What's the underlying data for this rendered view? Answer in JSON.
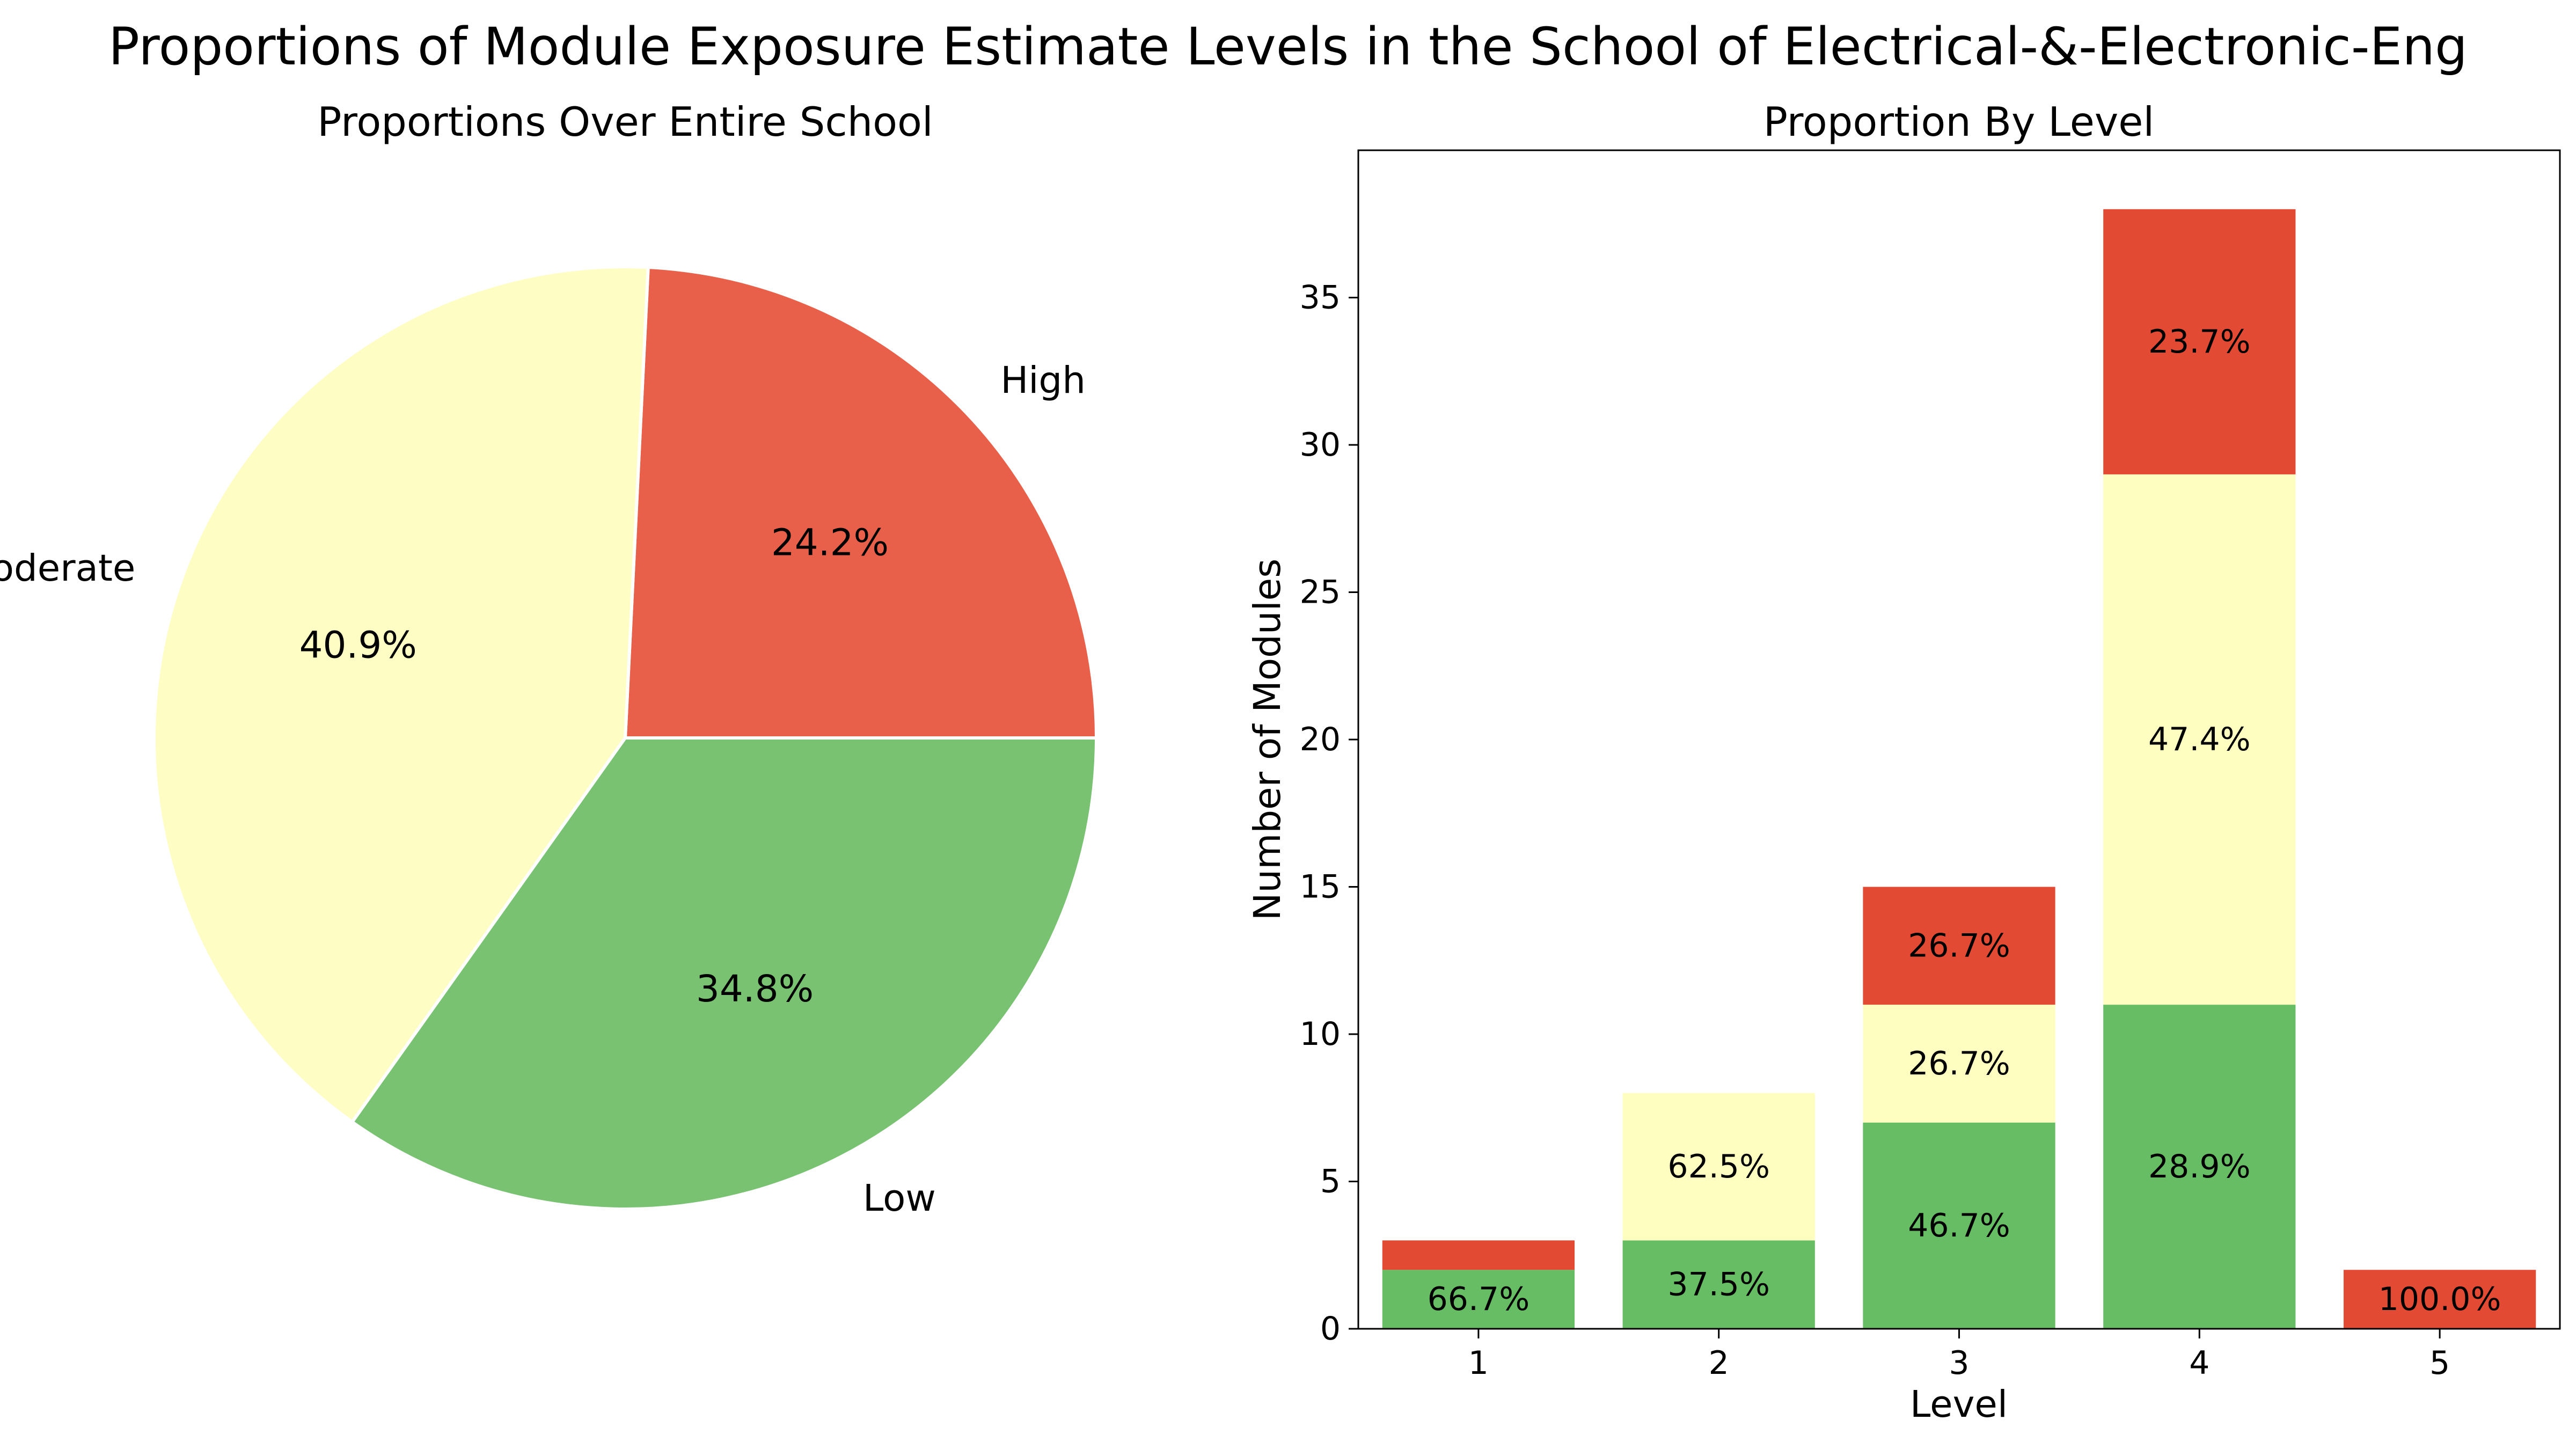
{
  "figure": {
    "title": "Proportions of Module Exposure Estimate Levels in the School of Electrical-&-Electronic-Eng"
  },
  "colors": {
    "low_pie": "#78c272",
    "moderate_pie": "#fefdc3",
    "high_pie": "#e8604a",
    "low_bar": "#66bd63",
    "moderate_bar": "#fefec0",
    "high_bar": "#e34a33"
  },
  "chart_data": [
    {
      "type": "pie",
      "title": "Proportions Over Entire School",
      "slices": [
        {
          "label": "High",
          "value": 24.2,
          "pct_label": "24.2%",
          "color": "#e8604a"
        },
        {
          "label": "Moderate",
          "value": 40.9,
          "pct_label": "40.9%",
          "color": "#fefdc3"
        },
        {
          "label": "Low",
          "value": 34.8,
          "pct_label": "34.8%",
          "color": "#78c272"
        }
      ],
      "start_angle_deg": 0,
      "direction": "counterclockwise"
    },
    {
      "type": "bar",
      "stacked": true,
      "title": "Proportion By Level",
      "xlabel": "Level",
      "ylabel": "Number of Modules",
      "categories": [
        "1",
        "2",
        "3",
        "4",
        "5"
      ],
      "ylim": [
        0,
        40
      ],
      "yticks": [
        0,
        5,
        10,
        15,
        20,
        25,
        30,
        35
      ],
      "series": [
        {
          "key": "low",
          "values": [
            2,
            3,
            7,
            11,
            0
          ],
          "labels": [
            "66.7%",
            "37.5%",
            "46.7%",
            "28.9%",
            ""
          ],
          "color": "#66bd63"
        },
        {
          "key": "moderate",
          "values": [
            0,
            5,
            4,
            18,
            0
          ],
          "labels": [
            "",
            "62.5%",
            "26.7%",
            "47.4%",
            ""
          ],
          "color": "#fefec0"
        },
        {
          "key": "high",
          "values": [
            1,
            0,
            4,
            9,
            2
          ],
          "labels": [
            "",
            "",
            "26.7%",
            "23.7%",
            "100.0%"
          ],
          "color": "#e34a33"
        }
      ],
      "grid": false,
      "legend": "none"
    }
  ]
}
